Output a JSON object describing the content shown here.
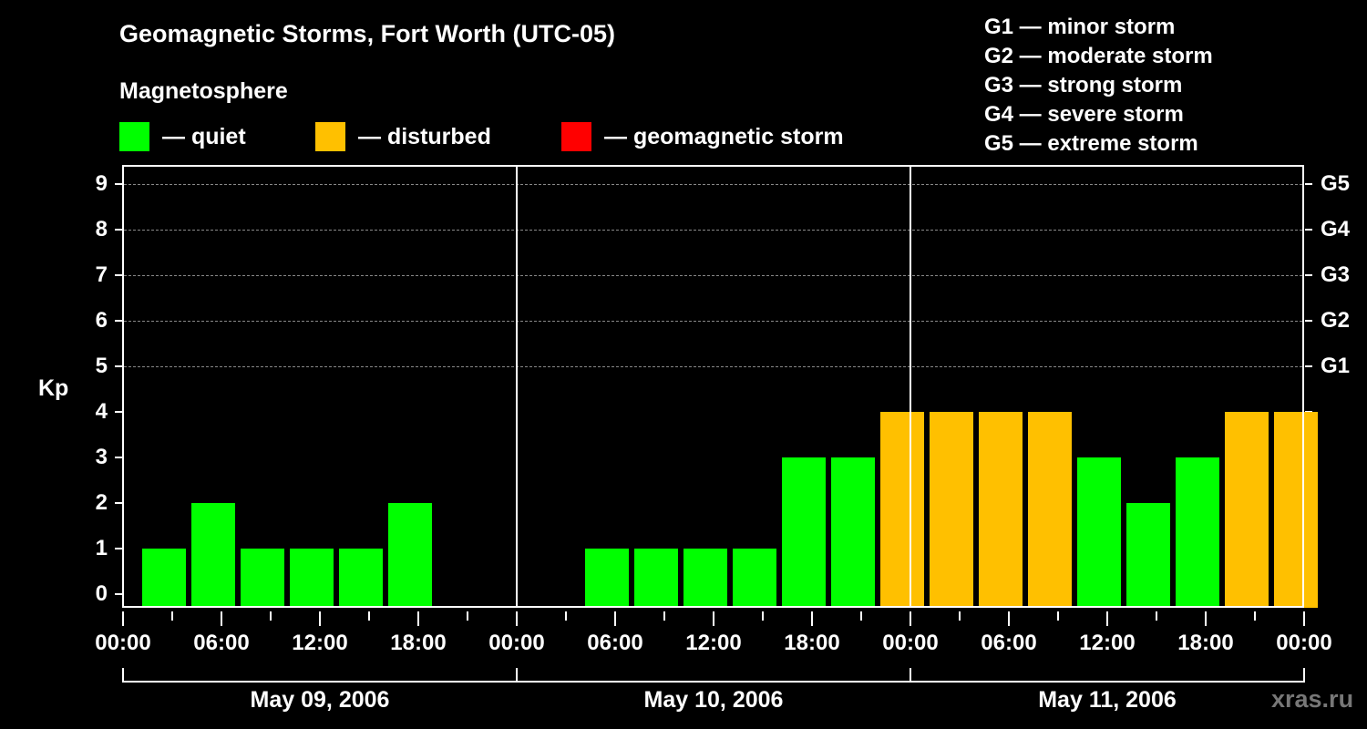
{
  "header": {
    "title": "Geomagnetic Storms, Fort Worth (UTC-05)",
    "subtitle": "Magnetosphere"
  },
  "legend": [
    {
      "label": "— quiet",
      "color": "#00ff00"
    },
    {
      "label": "— disturbed",
      "color": "#ffc000"
    },
    {
      "label": "— geomagnetic storm",
      "color": "#ff0000"
    }
  ],
  "gscale": [
    "G1 — minor storm",
    "G2 — moderate storm",
    "G3 — strong storm",
    "G4 — severe storm",
    "G5 — extreme storm"
  ],
  "axes": {
    "ylabel": "Kp",
    "yticks": [
      "0",
      "1",
      "2",
      "3",
      "4",
      "5",
      "6",
      "7",
      "8",
      "9"
    ],
    "right_labels": {
      "5": "G1",
      "6": "G2",
      "7": "G3",
      "8": "G4",
      "9": "G5"
    },
    "xticks": [
      "00:00",
      "06:00",
      "12:00",
      "18:00",
      "00:00",
      "06:00",
      "12:00",
      "18:00",
      "00:00",
      "06:00",
      "12:00",
      "18:00",
      "00:00"
    ],
    "days": [
      "May 09, 2006",
      "May 10, 2006",
      "May 11, 2006"
    ]
  },
  "watermark": "xras.ru",
  "chart_data": {
    "type": "bar",
    "title": "Geomagnetic Storms, Fort Worth (UTC-05)",
    "subtitle": "Magnetosphere",
    "xlabel": "",
    "ylabel": "Kp",
    "ylim": [
      0,
      9
    ],
    "grid": true,
    "legend": [
      "quiet",
      "disturbed",
      "geomagnetic storm"
    ],
    "categories": [
      "May 09 ~01:00",
      "May 09 ~04:00",
      "May 09 ~07:00",
      "May 09 ~10:00",
      "May 09 ~13:00",
      "May 09 ~16:00",
      "May 09 ~19:00",
      "May 09 ~22:00",
      "May 10 ~01:00",
      "May 10 ~04:00",
      "May 10 ~07:00",
      "May 10 ~10:00",
      "May 10 ~13:00",
      "May 10 ~16:00",
      "May 10 ~19:00",
      "May 10 ~22:00",
      "May 11 ~01:00",
      "May 11 ~04:00",
      "May 11 ~07:00",
      "May 11 ~10:00",
      "May 11 ~13:00",
      "May 11 ~16:00",
      "May 11 ~19:00",
      "May 11 ~22:00"
    ],
    "values": [
      1,
      2,
      1,
      1,
      1,
      2,
      null,
      null,
      null,
      1,
      1,
      1,
      1,
      3,
      3,
      4,
      4,
      4,
      4,
      3,
      2,
      3,
      4,
      4
    ],
    "status": [
      "quiet",
      "quiet",
      "quiet",
      "quiet",
      "quiet",
      "quiet",
      null,
      null,
      null,
      "quiet",
      "quiet",
      "quiet",
      "quiet",
      "quiet",
      "quiet",
      "disturbed",
      "disturbed",
      "disturbed",
      "disturbed",
      "quiet",
      "quiet",
      "quiet",
      "disturbed",
      "disturbed"
    ],
    "partial_last": {
      "value": 4,
      "status": "disturbed"
    },
    "colors": {
      "quiet": "#00ff00",
      "disturbed": "#ffc000",
      "storm": "#ff0000"
    },
    "right_axis": {
      "5": "G1",
      "6": "G2",
      "7": "G3",
      "8": "G4",
      "9": "G5"
    }
  }
}
